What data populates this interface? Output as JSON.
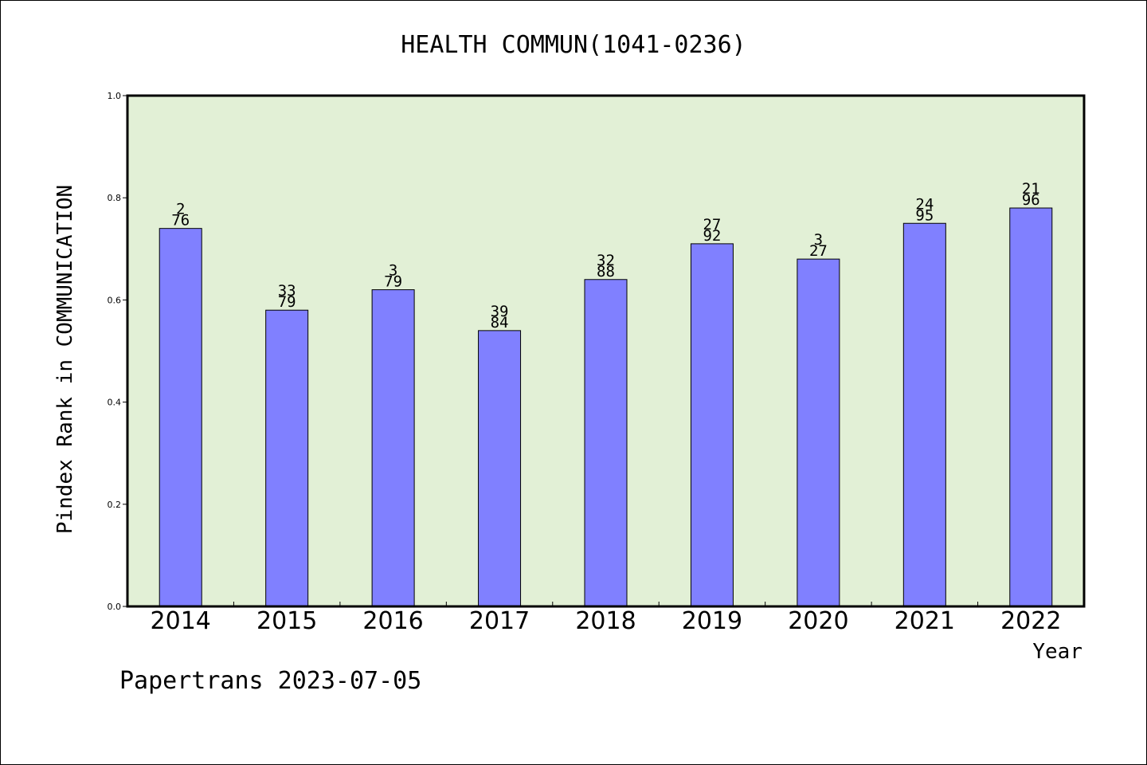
{
  "chart_data": {
    "type": "bar",
    "title": "HEALTH COMMUN(1041-0236)",
    "xlabel": "Year",
    "ylabel": "Pindex Rank in COMMUNICATION",
    "categories": [
      "2014",
      "2015",
      "2016",
      "2017",
      "2018",
      "2019",
      "2020",
      "2021",
      "2022"
    ],
    "values": [
      0.74,
      0.58,
      0.62,
      0.54,
      0.64,
      0.71,
      0.68,
      0.75,
      0.78
    ],
    "bar_labels": [
      {
        "top": "2",
        "bottom": "76"
      },
      {
        "top": "33",
        "bottom": "79"
      },
      {
        "top": "3",
        "bottom": "79"
      },
      {
        "top": "39",
        "bottom": "84"
      },
      {
        "top": "32",
        "bottom": "88"
      },
      {
        "top": "27",
        "bottom": "92"
      },
      {
        "top": "3",
        "bottom": "27"
      },
      {
        "top": "24",
        "bottom": "95"
      },
      {
        "top": "21",
        "bottom": "96"
      }
    ],
    "ylim": [
      0,
      1.0
    ],
    "yticks": [
      "0.0",
      "0.2",
      "0.4",
      "0.6",
      "0.8",
      "1.0"
    ],
    "grid": false,
    "colors": {
      "bar": "#8080ff",
      "plot_background": "#e2f0d6",
      "axis": "#000000"
    }
  },
  "footer": {
    "credit": "Papertrans 2023-07-05"
  }
}
